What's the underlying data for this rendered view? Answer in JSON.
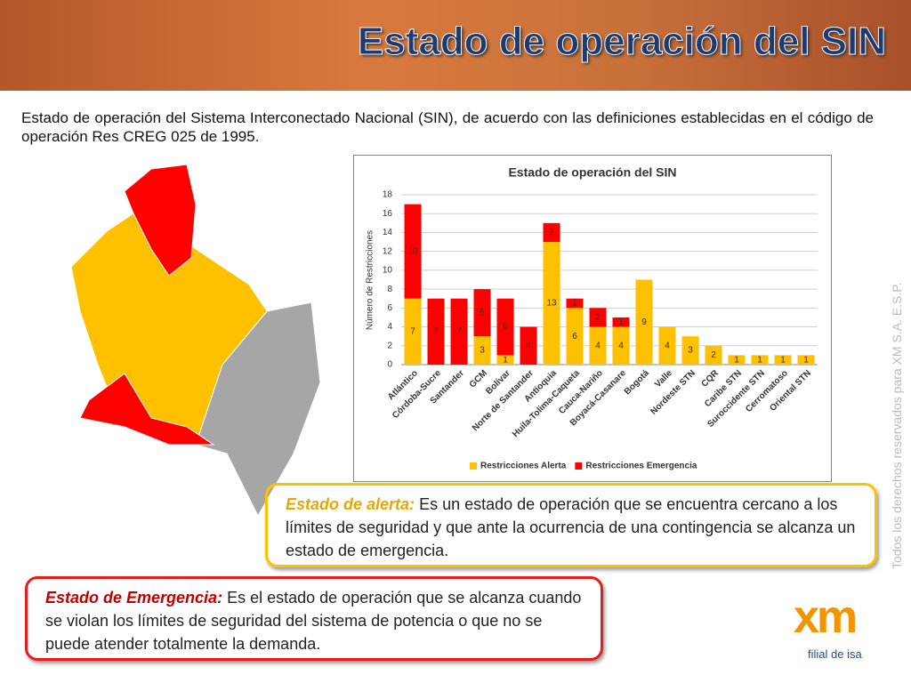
{
  "header": {
    "title": "Estado de operación del SIN"
  },
  "intro": "Estado de operación del Sistema Interconectado Nacional (SIN), de acuerdo con las definiciones establecidas en el código de operación Res CREG 025 de 1995.",
  "chart_data": {
    "type": "stacked-bar",
    "title": "Estado de operación del SIN",
    "y_label": "Número de Restricciones",
    "categories": [
      "Atlántico",
      "Córdoba-Sucre",
      "Santander",
      "GCM",
      "Bolívar",
      "Norte de Santander",
      "Antioquia",
      "Huila-Tolima-Caqueta",
      "Cauca-Nariño",
      "Boyacá-Casanare",
      "Bogotá",
      "Valle",
      "Nordeste STN",
      "CQR",
      "Caribe STN",
      "Suroccidente STN",
      "Cerromatoso",
      "Oriental STN"
    ],
    "series": [
      {
        "name": "Restricciones Alerta",
        "color": "#ffc000",
        "values": [
          7,
          0,
          0,
          3,
          1,
          0,
          13,
          6,
          4,
          4,
          9,
          4,
          3,
          2,
          1,
          1,
          1,
          1
        ]
      },
      {
        "name": "Restricciones Emergencia",
        "color": "#ff0000",
        "values": [
          10,
          7,
          7,
          5,
          6,
          4,
          2,
          1,
          2,
          1,
          0,
          0,
          0,
          0,
          0,
          0,
          0,
          0
        ]
      }
    ],
    "ylim": [
      0,
      18
    ],
    "yticks": [
      0,
      2,
      4,
      6,
      8,
      10,
      12,
      14,
      16,
      18
    ],
    "grid": true,
    "legend": "bottom"
  },
  "alert": {
    "term": "Estado de alerta:",
    "text": "Es un estado de operación que se encuentra cercano a los límites de seguridad y que ante la ocurrencia de una contingencia se alcanza un estado de emergencia."
  },
  "emergency": {
    "term": "Estado de Emergencia:",
    "text": "Es el estado de operación que se alcanza cuando se violan los límites de seguridad del sistema de potencia o que no se puede atender totalmente la demanda."
  },
  "side_note": "Todos los derechos reservados para XM S.A. E.S.P.",
  "logo": {
    "name": "xm",
    "tagline": "filial de isa"
  }
}
